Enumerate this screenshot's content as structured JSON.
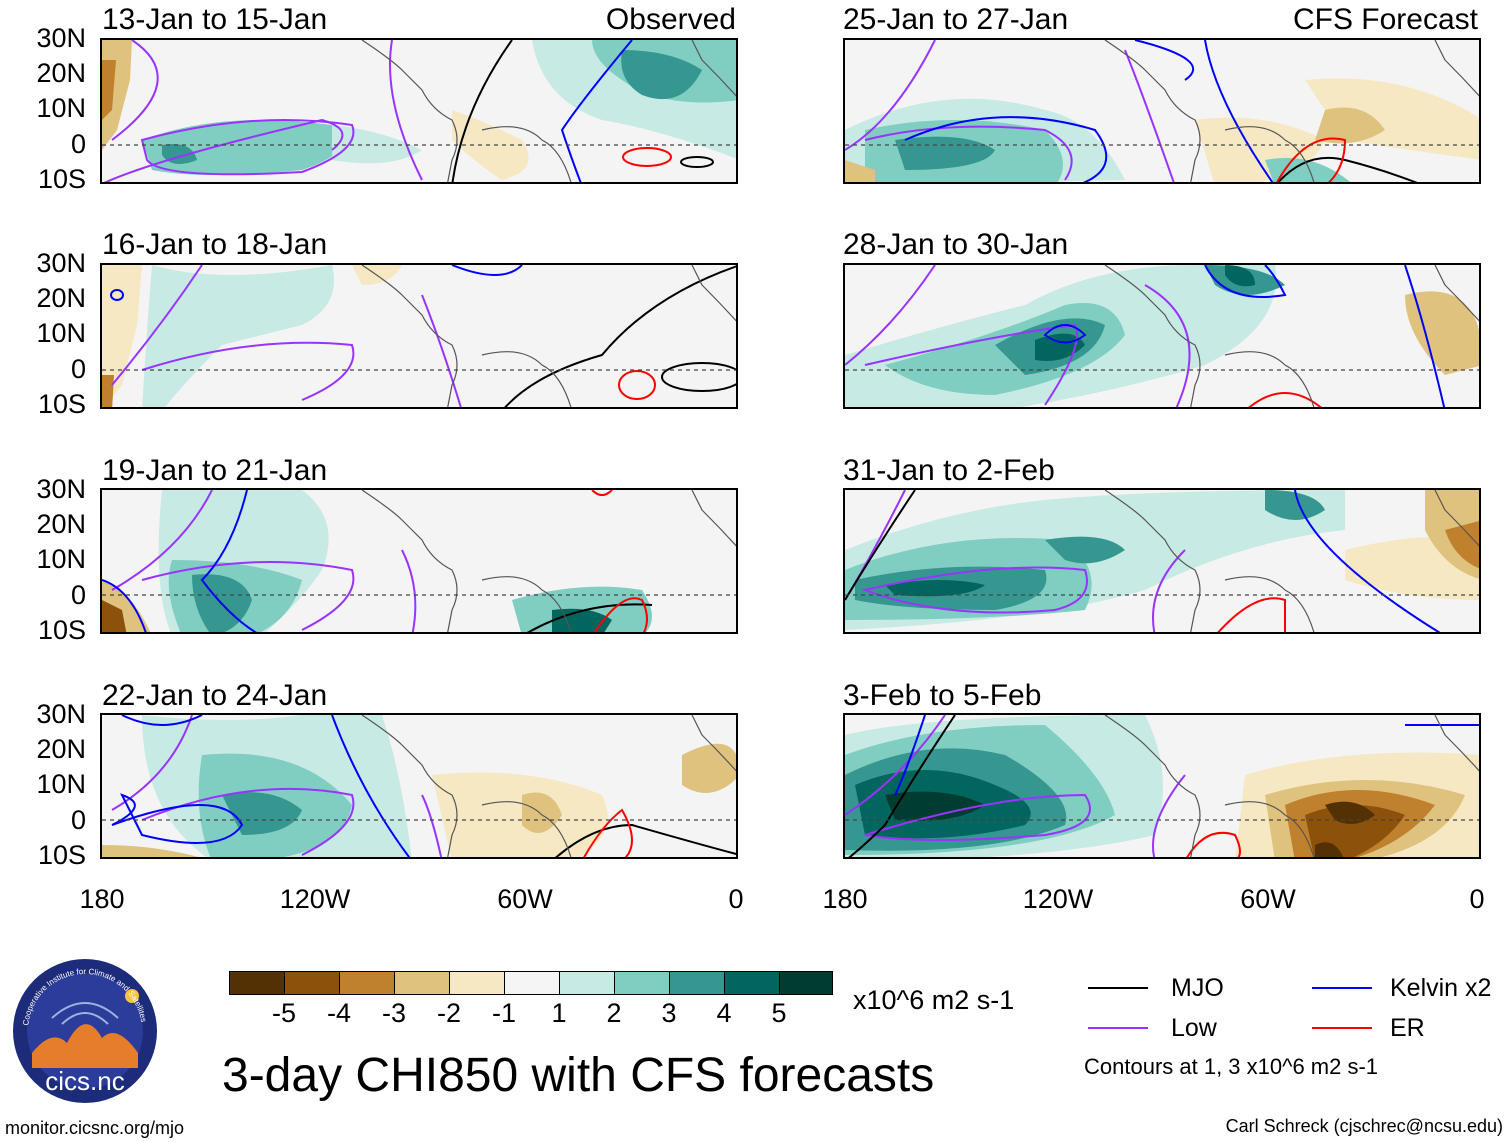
{
  "title": "3-day CHI850 with CFS forecasts",
  "panels_left": [
    {
      "title": "13-Jan to 15-Jan",
      "label": "Observed"
    },
    {
      "title": "16-Jan to 18-Jan",
      "label": ""
    },
    {
      "title": "19-Jan to 21-Jan",
      "label": ""
    },
    {
      "title": "22-Jan to 24-Jan",
      "label": ""
    }
  ],
  "panels_right": [
    {
      "title": "25-Jan to 27-Jan",
      "label": "CFS Forecast"
    },
    {
      "title": "28-Jan to 30-Jan",
      "label": ""
    },
    {
      "title": "31-Jan to 2-Feb",
      "label": ""
    },
    {
      "title": "3-Feb to 5-Feb",
      "label": ""
    }
  ],
  "lat_labels": [
    "30N",
    "20N",
    "10N",
    "0",
    "10S"
  ],
  "lon_labels": [
    "180",
    "120W",
    "60W",
    "0"
  ],
  "colorbar": {
    "labels": [
      "-5",
      "-4",
      "-3",
      "-2",
      "-1",
      "1",
      "2",
      "3",
      "4",
      "5"
    ],
    "colors": [
      "#543005",
      "#8c510a",
      "#bf812d",
      "#dfc27d",
      "#f6e8c3",
      "#f5f5f5",
      "#c7eae5",
      "#80cdc1",
      "#35978f",
      "#01665e",
      "#003c30"
    ],
    "units": "x10^6 m2 s-1"
  },
  "legend": {
    "mjo": {
      "label": "MJO",
      "color": "#000000"
    },
    "kelvin": {
      "label": "Kelvin x2",
      "color": "#0000ff"
    },
    "low": {
      "label": "Low",
      "color": "#9933ff"
    },
    "er": {
      "label": "ER",
      "color": "#ff0000"
    },
    "note": "Contours at 1, 3 x10^6 m2 s-1"
  },
  "logo_text": "cics.nc",
  "logo_ring_text": "Cooperative Institute for Climate and Satellites",
  "footer_left": "monitor.cicsnc.org/mjo",
  "footer_right": "Carl Schreck (cjschrec@ncsu.edu)"
}
